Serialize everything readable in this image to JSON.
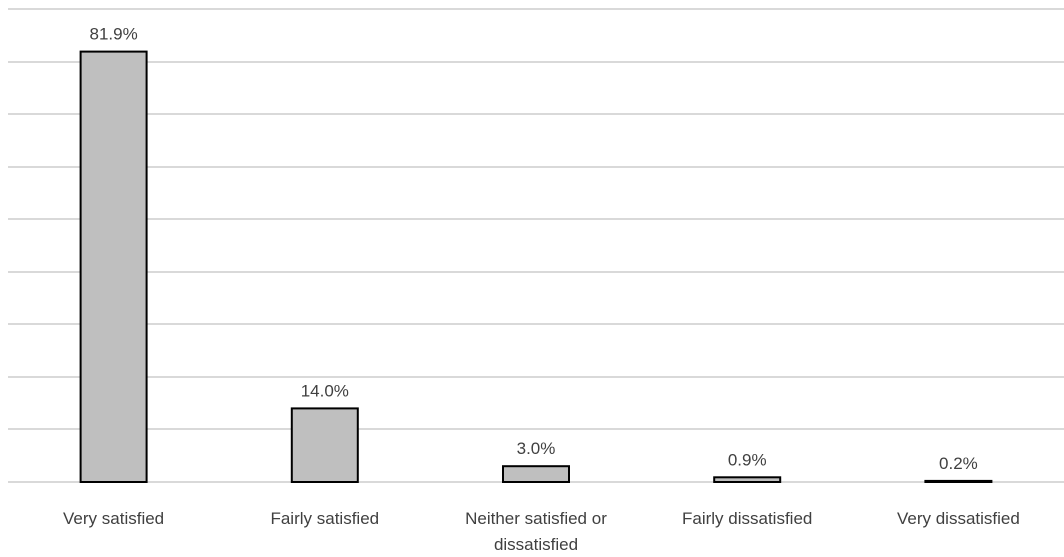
{
  "chart_data": {
    "type": "bar",
    "categories": [
      "Very satisfied",
      "Fairly satisfied",
      "Neither satisfied or dissatisfied",
      "Fairly dissatisfied",
      "Very dissatisfied"
    ],
    "values": [
      81.9,
      14.0,
      3.0,
      0.9,
      0.2
    ],
    "value_labels": [
      "81.9%",
      "14.0%",
      "3.0%",
      "0.9%",
      "0.2%"
    ],
    "ylim": [
      0,
      90
    ],
    "grid": true,
    "y_tick_labels_shown": false,
    "legend": false,
    "colors": {
      "bar_fill": "#bfbfbf",
      "bar_stroke": "#000000",
      "grid": "#d9d9d9",
      "text": "#404040"
    }
  }
}
